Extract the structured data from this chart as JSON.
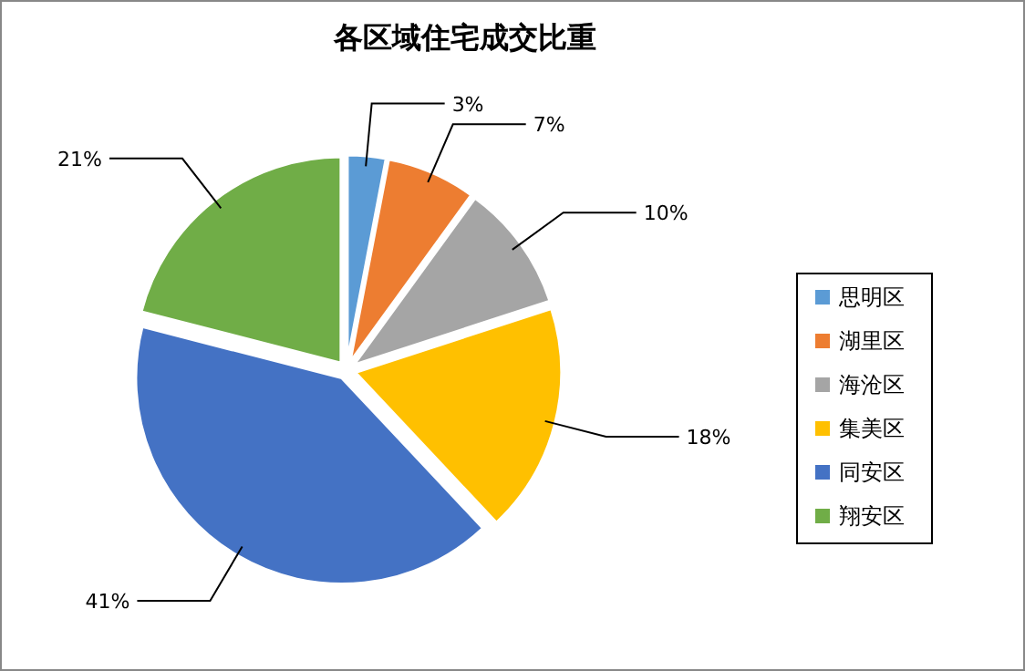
{
  "chart_data": {
    "type": "pie",
    "title": "各区域住宅成交比重",
    "categories": [
      "思明区",
      "湖里区",
      "海沧区",
      "集美区",
      "同安区",
      "翔安区"
    ],
    "values": [
      3,
      7,
      10,
      18,
      41,
      21
    ],
    "value_labels": [
      "3%",
      "7%",
      "10%",
      "18%",
      "41%",
      "21%"
    ],
    "colors": [
      "#5b9bd5",
      "#ed7d31",
      "#a5a5a5",
      "#ffc000",
      "#4472c4",
      "#70ad47"
    ],
    "legend": "right"
  }
}
